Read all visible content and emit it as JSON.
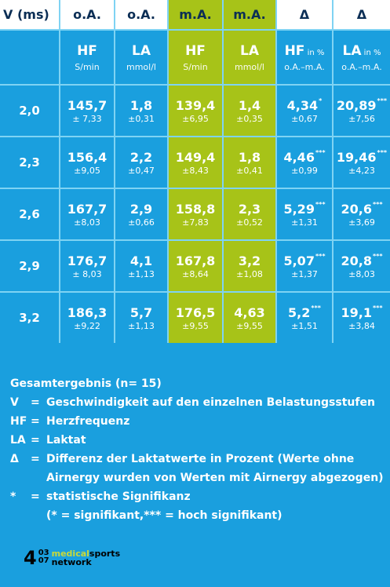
{
  "header": {
    "col0": "V (ms)",
    "col1": "o.A.",
    "col2": "o.A.",
    "col3": "m.A.",
    "col4": "m.A.",
    "col5": "Δ",
    "col6": "Δ"
  },
  "units": {
    "c1": {
      "main": "HF",
      "sub": "S/min"
    },
    "c2": {
      "main": "LA",
      "sub": "mmol/l"
    },
    "c3": {
      "main": "HF",
      "sub": "S/min"
    },
    "c4": {
      "main": "LA",
      "sub": "mmol/l"
    },
    "c5": {
      "main": "HF",
      "pct": " in %",
      "sub": "o.A.–m.A."
    },
    "c6": {
      "main": "LA",
      "pct": " in %",
      "sub": "o.A.–m.A."
    }
  },
  "rows": [
    {
      "v": "2,0",
      "c1": "145,7",
      "s1": "± 7,33",
      "c2": "1,8",
      "s2": "±0,31",
      "c3": "139,4",
      "s3": "±6,95",
      "c4": "1,4",
      "s4": "±0,35",
      "c5": "4,34",
      "sig5": "*",
      "s5": "±0,67",
      "c6": "20,89",
      "sig6": "***",
      "s6": "±7,56"
    },
    {
      "v": "2,3",
      "c1": "156,4",
      "s1": "±9,05",
      "c2": "2,2",
      "s2": "±0,47",
      "c3": "149,4",
      "s3": "±8,43",
      "c4": "1,8",
      "s4": "±0,41",
      "c5": "4,46",
      "sig5": "***",
      "s5": "±0,99",
      "c6": "19,46",
      "sig6": "***",
      "s6": "±4,23"
    },
    {
      "v": "2,6",
      "c1": "167,7",
      "s1": "±8,03",
      "c2": "2,9",
      "s2": "±0,66",
      "c3": "158,8",
      "s3": "±7,83",
      "c4": "2,3",
      "s4": "±0,52",
      "c5": "5,29",
      "sig5": "***",
      "s5": "±1,31",
      "c6": "20,6",
      "sig6": "***",
      "s6": "±3,69"
    },
    {
      "v": "2,9",
      "c1": "176,7",
      "s1": "± 8,03",
      "c2": "4,1",
      "s2": "±1,13",
      "c3": "167,8",
      "s3": "±8,64",
      "c4": "3,2",
      "s4": "±1,08",
      "c5": "5,07",
      "sig5": "***",
      "s5": "±1,37",
      "c6": "20,8",
      "sig6": "***",
      "s6": "±8,03"
    },
    {
      "v": "3,2",
      "c1": "186,3",
      "s1": "±9,22",
      "c2": "5,7",
      "s2": "±1,13",
      "c3": "176,5",
      "s3": "±9,55",
      "c4": "4,63",
      "s4": "±9,55",
      "c5": "5,2",
      "sig5": "***",
      "s5": "±1,51",
      "c6": "19,1",
      "sig6": "***",
      "s6": "±3,84"
    }
  ],
  "legend": {
    "title": "Gesamtergebnis (n= 15)",
    "items": [
      {
        "key": "V",
        "eq": "=",
        "text": "Geschwindigkeit auf den einzelnen Belastungsstufen"
      },
      {
        "key": "HF",
        "eq": "=",
        "text": "Herzfrequenz"
      },
      {
        "key": "LA",
        "eq": "=",
        "text": "Laktat"
      },
      {
        "key": "Δ",
        "eq": "=",
        "text": "Differenz der Laktatwerte in Prozent (Werte ohne"
      },
      {
        "key": "*",
        "eq": "=",
        "text": "statistische Signifikanz"
      }
    ],
    "cont_delta": "Airnergy wurden von Werten mit Airnergy abgezogen)",
    "cont_sig": "(* = signifikant,*** = hoch signifikant)"
  },
  "footer": {
    "page": "4",
    "issue_top": "03",
    "issue_bottom": "07",
    "brand_a": "medical",
    "brand_b": "sports",
    "brand_line2": "network"
  },
  "colors": {
    "background": "#1a9fde",
    "accent_green": "#a7c318",
    "header_text": "#0b2e55"
  }
}
